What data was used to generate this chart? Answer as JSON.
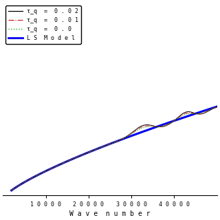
{
  "title": "",
  "xlabel": "W a v e  n u m b e r",
  "ylabel": "",
  "xlim": [
    0,
    50000
  ],
  "x_ticks": [
    10000,
    20000,
    30000,
    40000
  ],
  "background_color": "#ffffff",
  "font_family": "monospace",
  "tick_fontsize": 6,
  "legend_fontsize": 6,
  "xlabel_fontsize": 7,
  "ls_color": "#0000ee",
  "ls_linewidth": 2.2,
  "tau02_color": "#000000",
  "tau01_color": "#cc2222",
  "tau00_color": "#22aa22",
  "legend_text": [
    "τ_q  =  0 . 0 2",
    "τ_q  =  0 . 0 1",
    "τ_q  =  0 . 0",
    "L S  M o d e l"
  ]
}
